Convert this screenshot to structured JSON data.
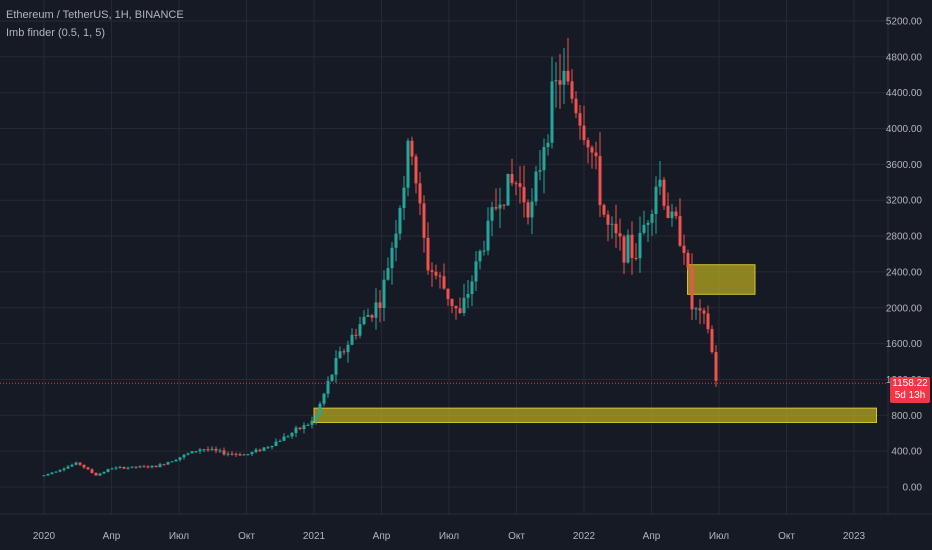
{
  "chart_data": {
    "type": "candlestick",
    "symbol_title": "Ethereum / TetherUS, 1H, BINANCE",
    "indicator_title": "Imb finder (0.5, 1, 5)",
    "y_ticks": [
      "5200.00",
      "4800.00",
      "4400.00",
      "4000.00",
      "3600.00",
      "3200.00",
      "2800.00",
      "2400.00",
      "2000.00",
      "1600.00",
      "1200.00",
      "800.00",
      "400.00",
      "0.00"
    ],
    "ylim": [
      0,
      5200
    ],
    "x_ticks": [
      "2020",
      "Апр",
      "Июл",
      "Окт",
      "2021",
      "Апр",
      "Июл",
      "Окт",
      "2022",
      "Апр",
      "Июл",
      "Окт",
      "2023"
    ],
    "last_price": "1158.22",
    "countdown": "5d 13h",
    "colors": {
      "up": "#26a69a",
      "down": "#ef5350",
      "zone": "#b5a820",
      "accent": "#f23645",
      "background": "#161a25",
      "grid": "#242935",
      "text": "#b2b5be"
    },
    "anchors": [
      {
        "month": 0,
        "price": 130
      },
      {
        "month": 1.5,
        "price": 270
      },
      {
        "month": 2.3,
        "price": 130
      },
      {
        "month": 3,
        "price": 210
      },
      {
        "month": 5,
        "price": 230
      },
      {
        "month": 6,
        "price": 330
      },
      {
        "month": 7,
        "price": 430
      },
      {
        "month": 8,
        "price": 380
      },
      {
        "month": 9,
        "price": 360
      },
      {
        "month": 10,
        "price": 460
      },
      {
        "month": 11,
        "price": 600
      },
      {
        "month": 12,
        "price": 740
      },
      {
        "month": 13,
        "price": 1400
      },
      {
        "month": 14,
        "price": 1800
      },
      {
        "month": 15,
        "price": 2100
      },
      {
        "month": 16,
        "price": 3400
      },
      {
        "month": 16.3,
        "price": 3900
      },
      {
        "month": 17,
        "price": 2500
      },
      {
        "month": 17.6,
        "price": 2300
      },
      {
        "month": 18.5,
        "price": 1900
      },
      {
        "month": 19.5,
        "price": 2700
      },
      {
        "month": 20.3,
        "price": 3300
      },
      {
        "month": 21,
        "price": 3400
      },
      {
        "month": 21.7,
        "price": 3100
      },
      {
        "month": 22.3,
        "price": 4000
      },
      {
        "month": 22.9,
        "price": 4600
      },
      {
        "month": 23.6,
        "price": 4300
      },
      {
        "month": 24.3,
        "price": 3800
      },
      {
        "month": 25,
        "price": 2900
      },
      {
        "month": 25.6,
        "price": 2700
      },
      {
        "month": 26.3,
        "price": 2600
      },
      {
        "month": 27,
        "price": 3200
      },
      {
        "month": 27.3,
        "price": 3500
      },
      {
        "month": 27.8,
        "price": 3000
      },
      {
        "month": 28.4,
        "price": 2800
      },
      {
        "month": 28.8,
        "price": 2000
      },
      {
        "month": 29.5,
        "price": 1800
      },
      {
        "month": 29.9,
        "price": 1150
      }
    ],
    "imbalance_zones": [
      {
        "start_month": 12,
        "end_month": 37,
        "low": 720,
        "high": 880
      },
      {
        "start_month": 28.6,
        "end_month": 31.6,
        "low": 2150,
        "high": 2480
      }
    ]
  }
}
